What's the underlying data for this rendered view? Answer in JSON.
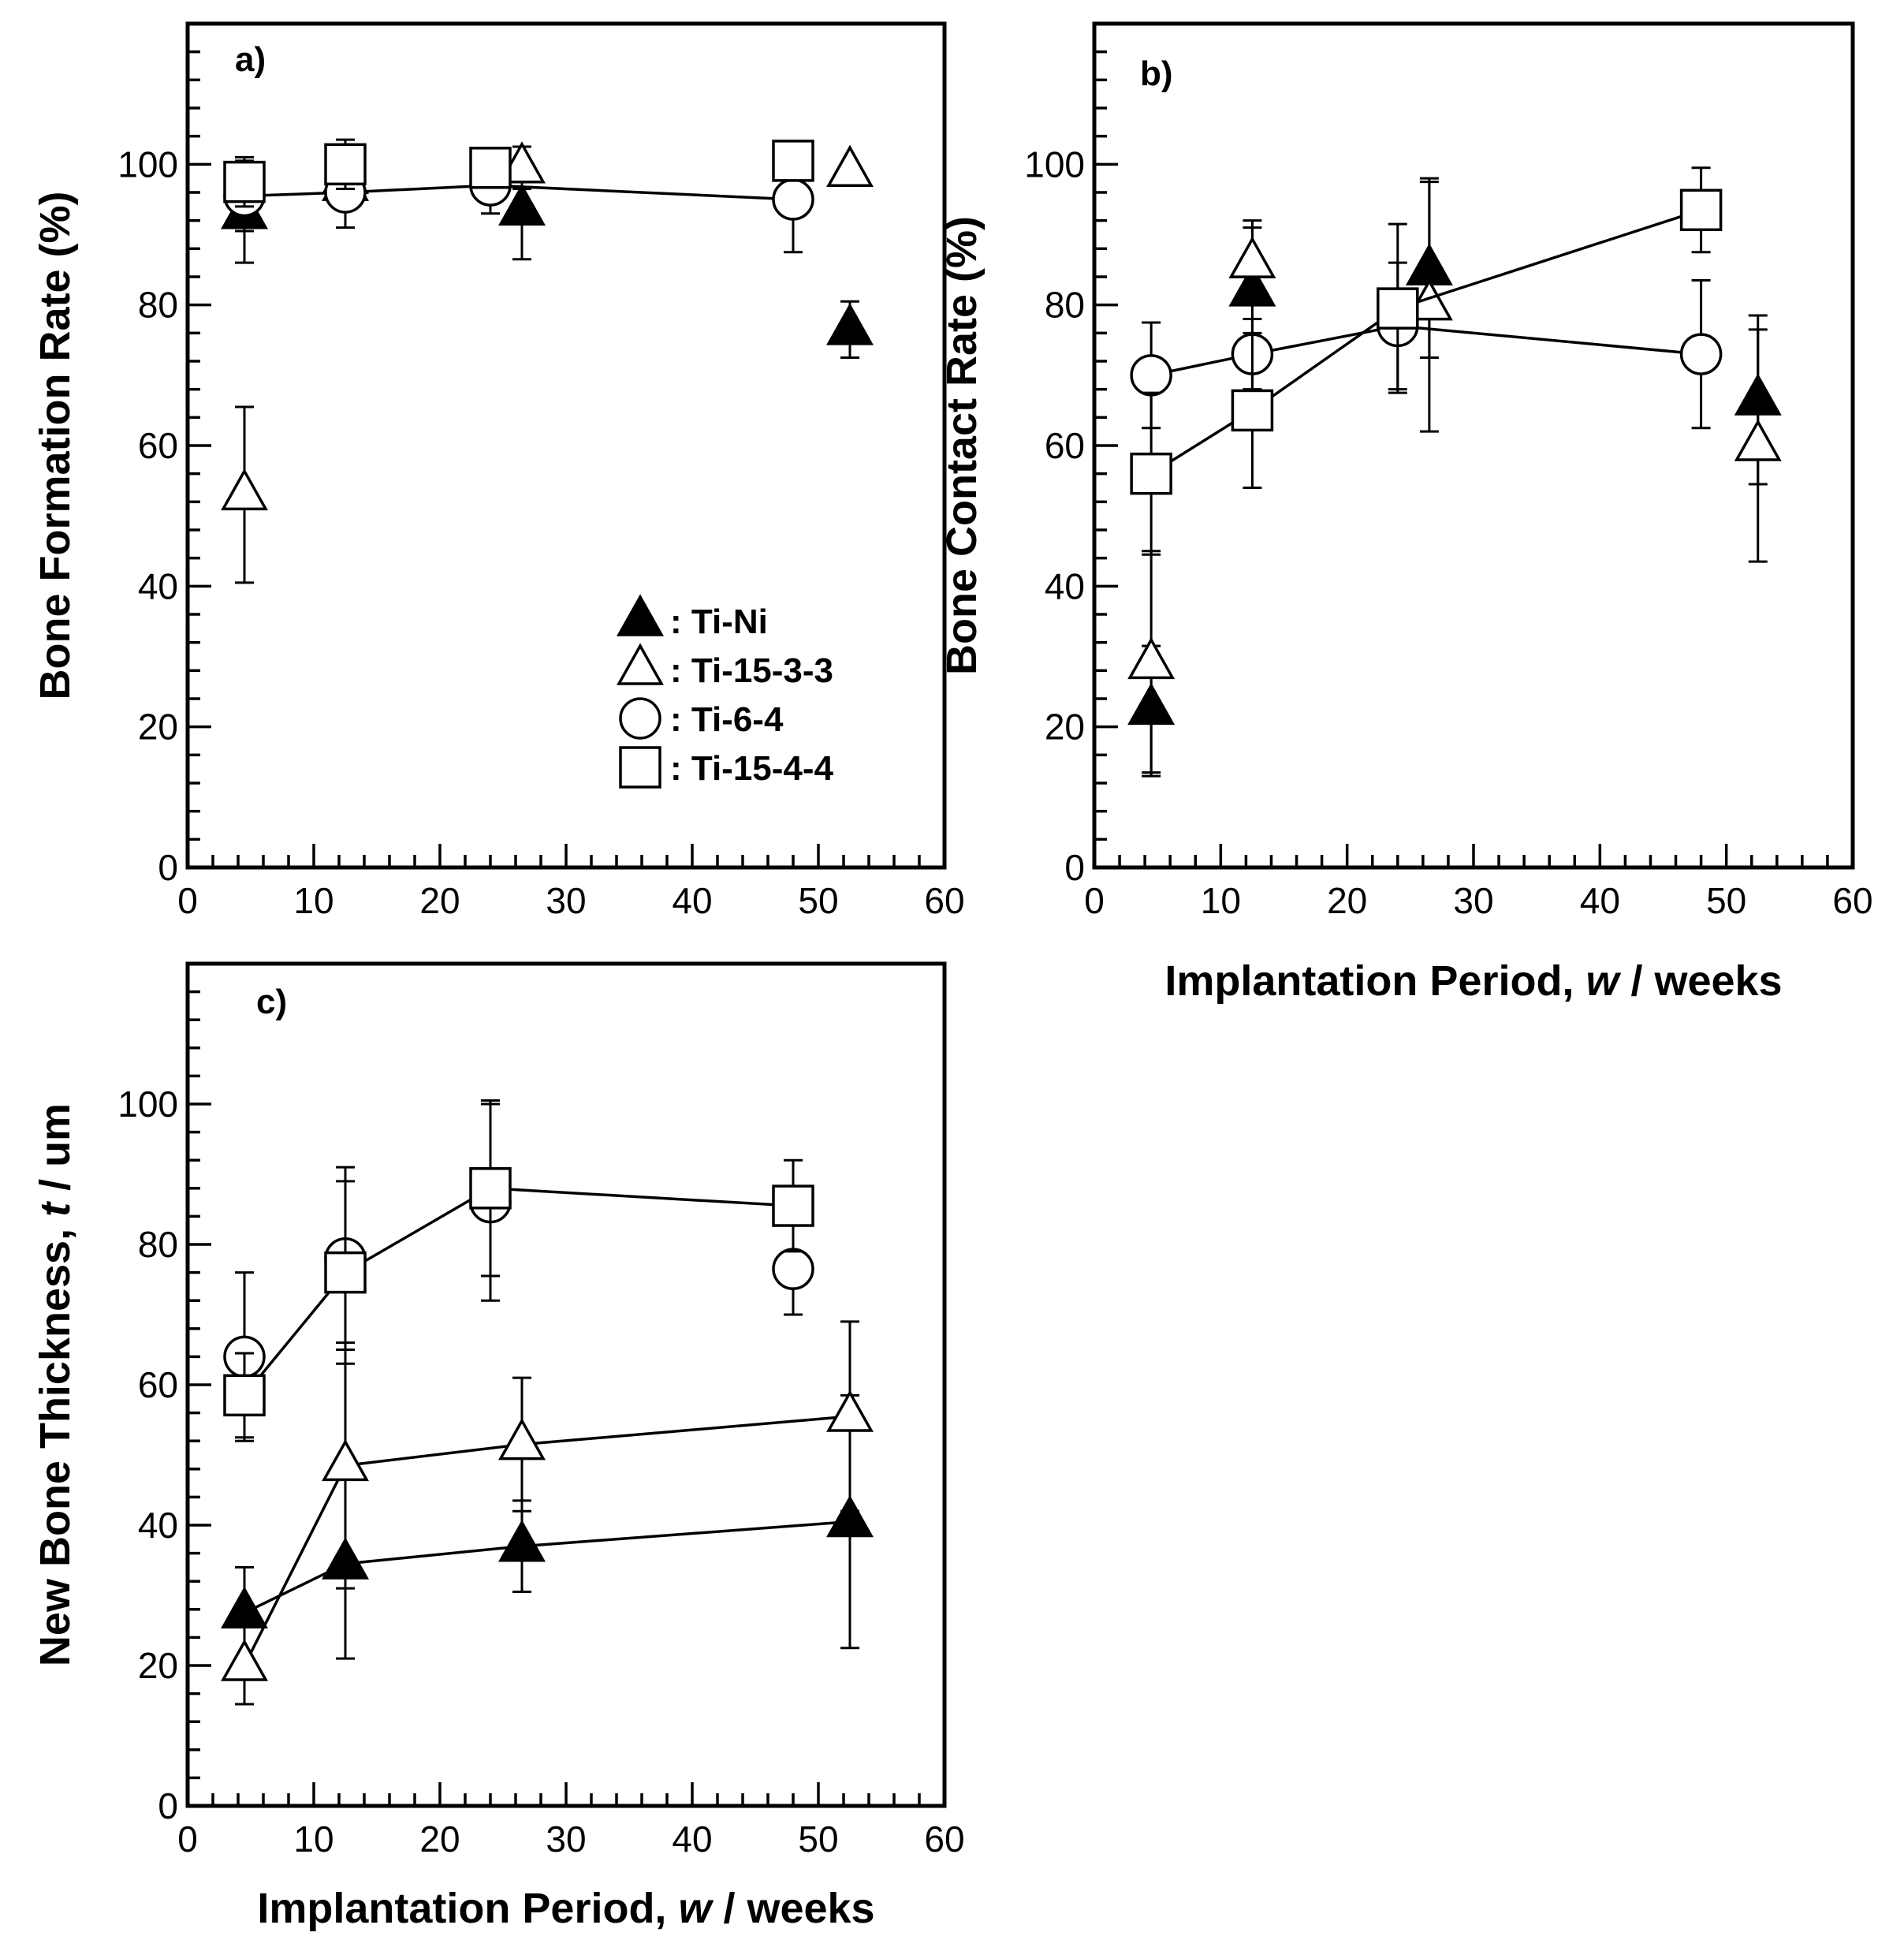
{
  "chart_data": [
    {
      "panel": "a)",
      "type": "scatter",
      "xlabel": "",
      "ylabel": "Bone Formation Rate (%)",
      "xlim": [
        0,
        60
      ],
      "ylim": [
        0,
        120
      ],
      "xticks": [
        "0",
        "10",
        "20",
        "30",
        "40",
        "50",
        "60"
      ],
      "yticks": [
        "0",
        "20",
        "40",
        "60",
        "80",
        "100"
      ],
      "legend": [
        {
          "label": ": Ti-Ni",
          "marker": "triangle-filled"
        },
        {
          "label": ": Ti-15-3-3",
          "marker": "triangle-open"
        },
        {
          "label": ": Ti-6-4",
          "marker": "circle-open"
        },
        {
          "label": ": Ti-15-4-4",
          "marker": "square-open"
        }
      ],
      "series": [
        {
          "name": "Ti-Ni",
          "marker": "triangle-filled",
          "line": false,
          "points": [
            {
              "x": 4.5,
              "y": 93,
              "err": 7
            },
            {
              "x": 12.5,
              "y": 97,
              "err": 0
            },
            {
              "x": 26.5,
              "y": 93.5,
              "err": 7
            },
            {
              "x": 52.5,
              "y": 76.5,
              "err": 4
            }
          ]
        },
        {
          "name": "Ti-15-3-3",
          "marker": "triangle-open",
          "line": false,
          "points": [
            {
              "x": 4.5,
              "y": 53,
              "err": 12.5
            },
            {
              "x": 12.5,
              "y": 98,
              "err": 0
            },
            {
              "x": 26.5,
              "y": 99.5,
              "err": 3
            },
            {
              "x": 52.5,
              "y": 99,
              "err": 0
            }
          ]
        },
        {
          "name": "Ti-6-4",
          "marker": "circle-open",
          "line": true,
          "points": [
            {
              "x": 4.5,
              "y": 95.5,
              "err": 5
            },
            {
              "x": 12.5,
              "y": 96,
              "err": 5
            },
            {
              "x": 24,
              "y": 97,
              "err": 4
            },
            {
              "x": 48,
              "y": 95,
              "err": 7.5
            }
          ]
        },
        {
          "name": "Ti-15-4-4",
          "marker": "square-open",
          "line": false,
          "points": [
            {
              "x": 4.5,
              "y": 97.5,
              "err": 3.5
            },
            {
              "x": 12.5,
              "y": 100,
              "err": 3.5
            },
            {
              "x": 24,
              "y": 99.5,
              "err": 0
            },
            {
              "x": 48,
              "y": 100.5,
              "err": 0
            }
          ]
        }
      ]
    },
    {
      "panel": "b)",
      "type": "scatter",
      "xlabel": "Implantation Period, w / weeks",
      "ylabel": "Bone Contact Rate (%)",
      "xlim": [
        0,
        60
      ],
      "ylim": [
        0,
        120
      ],
      "xticks": [
        "0",
        "10",
        "20",
        "30",
        "40",
        "50",
        "60"
      ],
      "yticks": [
        "0",
        "20",
        "40",
        "60",
        "80",
        "100"
      ],
      "series": [
        {
          "name": "Ti-Ni",
          "marker": "triangle-filled",
          "line": false,
          "points": [
            {
              "x": 4.5,
              "y": 22.5,
              "err": 9
            },
            {
              "x": 12.5,
              "y": 82,
              "err": 9
            },
            {
              "x": 26.5,
              "y": 85,
              "err": 12.5
            },
            {
              "x": 52.5,
              "y": 66.5,
              "err": 12
            }
          ]
        },
        {
          "name": "Ti-15-3-3",
          "marker": "triangle-open",
          "line": false,
          "points": [
            {
              "x": 4.5,
              "y": 29,
              "err": 16
            },
            {
              "x": 12.5,
              "y": 86,
              "err": 6
            },
            {
              "x": 26.5,
              "y": 80,
              "err": 18
            },
            {
              "x": 52.5,
              "y": 60,
              "err": 16.5
            }
          ]
        },
        {
          "name": "Ti-6-4",
          "marker": "circle-open",
          "line": true,
          "points": [
            {
              "x": 4.5,
              "y": 70,
              "err": 7.5
            },
            {
              "x": 12.5,
              "y": 73,
              "err": 5
            },
            {
              "x": 24,
              "y": 77,
              "err": 9
            },
            {
              "x": 48,
              "y": 73,
              "err": 10.5
            }
          ]
        },
        {
          "name": "Ti-15-4-4",
          "marker": "square-open",
          "line": true,
          "points": [
            {
              "x": 4.5,
              "y": 56,
              "err": 11.5
            },
            {
              "x": 12.5,
              "y": 65,
              "err": 11
            },
            {
              "x": 24,
              "y": 79.5,
              "err": 12
            },
            {
              "x": 48,
              "y": 93.5,
              "err": 6
            }
          ]
        }
      ]
    },
    {
      "panel": "c)",
      "type": "scatter",
      "xlabel": "Implantation Period, w / weeks",
      "ylabel": "New Bone Thickness, t / um",
      "xlim": [
        0,
        60
      ],
      "ylim": [
        0,
        120
      ],
      "xticks": [
        "0",
        "10",
        "20",
        "30",
        "40",
        "50",
        "60"
      ],
      "yticks": [
        "0",
        "20",
        "40",
        "60",
        "80",
        "100"
      ],
      "series": [
        {
          "name": "Ti-Ni",
          "marker": "triangle-filled",
          "line": true,
          "points": [
            {
              "x": 4.5,
              "y": 27.5,
              "err": 6.5
            },
            {
              "x": 12.5,
              "y": 34.5,
              "err": 13.5
            },
            {
              "x": 26.5,
              "y": 37,
              "err": 6.5
            },
            {
              "x": 52.5,
              "y": 40.5,
              "err": 18
            }
          ]
        },
        {
          "name": "Ti-15-3-3",
          "marker": "triangle-open",
          "line": true,
          "points": [
            {
              "x": 4.5,
              "y": 20,
              "err": 5.5
            },
            {
              "x": 12.5,
              "y": 48.5,
              "err": 17.5
            },
            {
              "x": 26.5,
              "y": 51.5,
              "err": 9.5
            },
            {
              "x": 52.5,
              "y": 55.5,
              "err": 13.5
            }
          ]
        },
        {
          "name": "Ti-6-4",
          "marker": "circle-open",
          "line": false,
          "points": [
            {
              "x": 4.5,
              "y": 64,
              "err": 12
            },
            {
              "x": 12.5,
              "y": 78,
              "err": 13
            },
            {
              "x": 24,
              "y": 86,
              "err": 14
            },
            {
              "x": 48,
              "y": 76.5,
              "err": 6.5
            }
          ]
        },
        {
          "name": "Ti-15-4-4",
          "marker": "square-open",
          "line": true,
          "points": [
            {
              "x": 4.5,
              "y": 58.5,
              "err": 6
            },
            {
              "x": 12.5,
              "y": 76,
              "err": 13
            },
            {
              "x": 24,
              "y": 88,
              "err": 12.5
            },
            {
              "x": 48,
              "y": 85.5,
              "err": 6.5
            }
          ]
        }
      ]
    }
  ]
}
